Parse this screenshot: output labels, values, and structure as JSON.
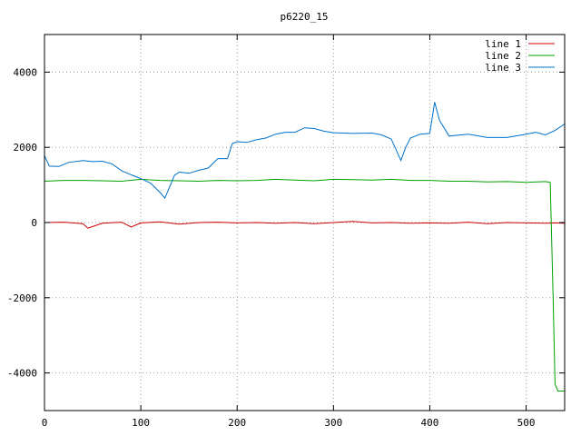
{
  "chart_data": {
    "type": "line",
    "title": "p6220_15",
    "xlabel": "",
    "ylabel": "",
    "xlim": [
      0,
      540
    ],
    "ylim": [
      -5000,
      5000
    ],
    "x_ticks": [
      0,
      100,
      200,
      300,
      400,
      500
    ],
    "y_ticks": [
      -4000,
      -2000,
      0,
      2000,
      4000
    ],
    "grid": true,
    "legend_position": "top-right",
    "series": [
      {
        "name": "line 1",
        "color": "#cc0000",
        "points": [
          [
            0,
            0
          ],
          [
            20,
            10
          ],
          [
            40,
            -30
          ],
          [
            45,
            -150
          ],
          [
            60,
            -20
          ],
          [
            80,
            10
          ],
          [
            90,
            -120
          ],
          [
            100,
            -10
          ],
          [
            120,
            20
          ],
          [
            140,
            -40
          ],
          [
            160,
            0
          ],
          [
            180,
            10
          ],
          [
            200,
            -10
          ],
          [
            220,
            0
          ],
          [
            240,
            -20
          ],
          [
            260,
            0
          ],
          [
            280,
            -30
          ],
          [
            300,
            0
          ],
          [
            320,
            30
          ],
          [
            340,
            -10
          ],
          [
            360,
            0
          ],
          [
            380,
            -20
          ],
          [
            400,
            -10
          ],
          [
            420,
            -20
          ],
          [
            440,
            10
          ],
          [
            460,
            -30
          ],
          [
            480,
            0
          ],
          [
            500,
            -10
          ],
          [
            520,
            -20
          ],
          [
            530,
            -10
          ],
          [
            540,
            -20
          ]
        ]
      },
      {
        "name": "line 2",
        "color": "#00a000",
        "points": [
          [
            0,
            1100
          ],
          [
            20,
            1120
          ],
          [
            40,
            1120
          ],
          [
            60,
            1110
          ],
          [
            80,
            1100
          ],
          [
            100,
            1150
          ],
          [
            120,
            1120
          ],
          [
            140,
            1110
          ],
          [
            160,
            1100
          ],
          [
            180,
            1120
          ],
          [
            200,
            1110
          ],
          [
            220,
            1120
          ],
          [
            240,
            1150
          ],
          [
            260,
            1130
          ],
          [
            280,
            1110
          ],
          [
            300,
            1150
          ],
          [
            320,
            1140
          ],
          [
            340,
            1130
          ],
          [
            360,
            1150
          ],
          [
            380,
            1120
          ],
          [
            400,
            1120
          ],
          [
            420,
            1100
          ],
          [
            440,
            1100
          ],
          [
            460,
            1080
          ],
          [
            480,
            1090
          ],
          [
            500,
            1070
          ],
          [
            520,
            1090
          ],
          [
            525,
            1070
          ],
          [
            528,
            -2000
          ],
          [
            530,
            -4300
          ],
          [
            533,
            -4480
          ],
          [
            540,
            -4480
          ]
        ]
      },
      {
        "name": "line 3",
        "color": "#0070c8",
        "points": [
          [
            0,
            1780
          ],
          [
            5,
            1500
          ],
          [
            15,
            1490
          ],
          [
            25,
            1600
          ],
          [
            40,
            1650
          ],
          [
            50,
            1620
          ],
          [
            60,
            1630
          ],
          [
            70,
            1560
          ],
          [
            80,
            1380
          ],
          [
            90,
            1270
          ],
          [
            100,
            1170
          ],
          [
            110,
            1050
          ],
          [
            120,
            800
          ],
          [
            125,
            650
          ],
          [
            130,
            950
          ],
          [
            135,
            1260
          ],
          [
            140,
            1340
          ],
          [
            150,
            1310
          ],
          [
            160,
            1390
          ],
          [
            170,
            1450
          ],
          [
            180,
            1700
          ],
          [
            190,
            1700
          ],
          [
            195,
            2100
          ],
          [
            200,
            2150
          ],
          [
            210,
            2130
          ],
          [
            220,
            2200
          ],
          [
            230,
            2250
          ],
          [
            240,
            2350
          ],
          [
            250,
            2400
          ],
          [
            260,
            2400
          ],
          [
            270,
            2520
          ],
          [
            280,
            2500
          ],
          [
            290,
            2430
          ],
          [
            300,
            2390
          ],
          [
            320,
            2370
          ],
          [
            340,
            2380
          ],
          [
            350,
            2330
          ],
          [
            360,
            2220
          ],
          [
            370,
            1650
          ],
          [
            375,
            2000
          ],
          [
            380,
            2250
          ],
          [
            390,
            2350
          ],
          [
            400,
            2370
          ],
          [
            405,
            3200
          ],
          [
            410,
            2720
          ],
          [
            420,
            2300
          ],
          [
            440,
            2350
          ],
          [
            460,
            2260
          ],
          [
            480,
            2260
          ],
          [
            500,
            2350
          ],
          [
            510,
            2400
          ],
          [
            520,
            2330
          ],
          [
            530,
            2450
          ],
          [
            540,
            2620
          ]
        ]
      }
    ]
  }
}
